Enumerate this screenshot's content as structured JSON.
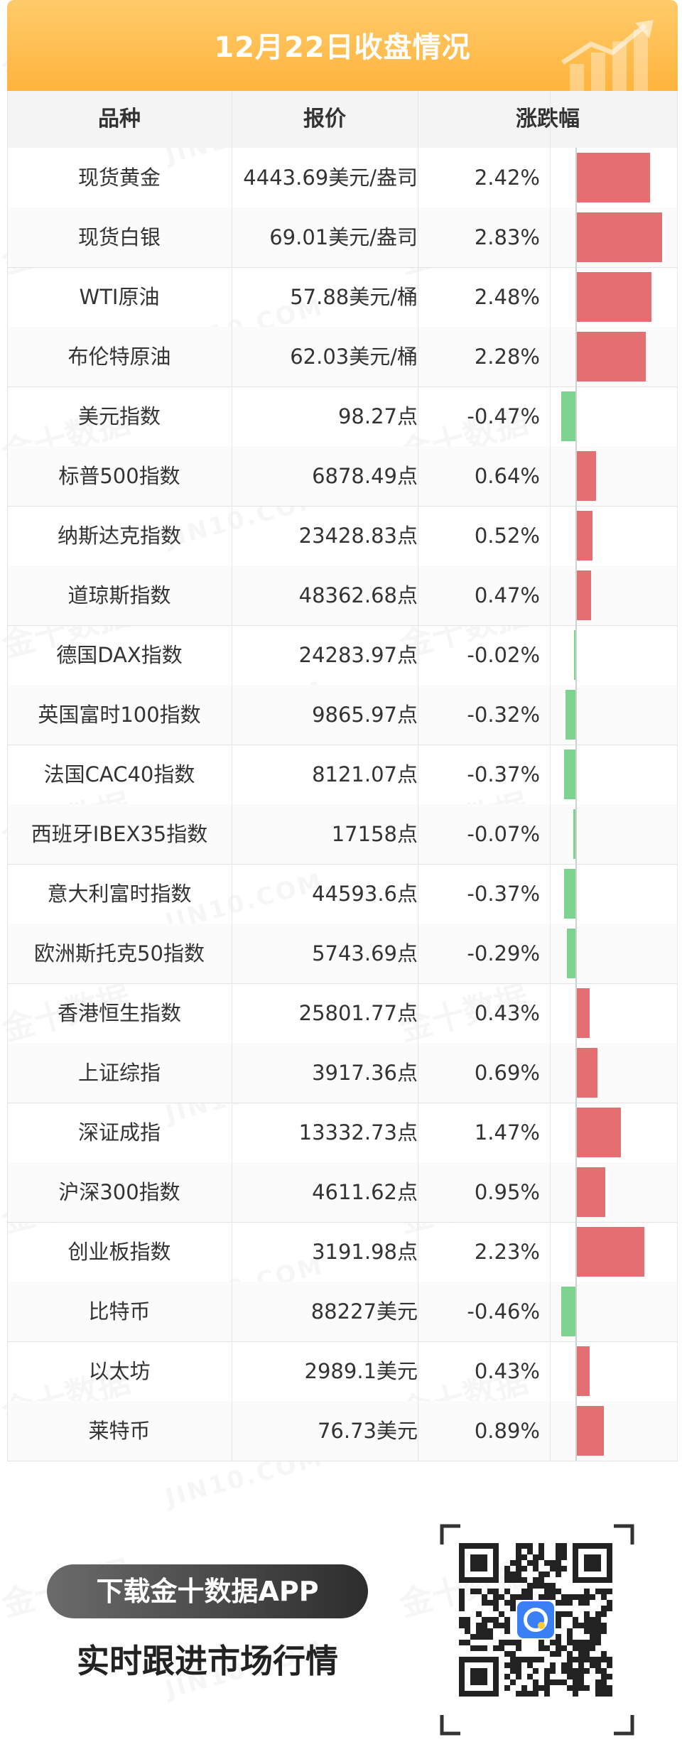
{
  "header": {
    "title": "12月22日收盘情况"
  },
  "table": {
    "columns": [
      "品种",
      "报价",
      "涨跌幅"
    ],
    "rows": [
      {
        "name": "现货黄金",
        "price": "4443.69美元/盎司",
        "change": "2.42%",
        "pct": 2.42
      },
      {
        "name": "现货白银",
        "price": "69.01美元/盎司",
        "change": "2.83%",
        "pct": 2.83
      },
      {
        "name": "WTI原油",
        "price": "57.88美元/桶",
        "change": "2.48%",
        "pct": 2.48
      },
      {
        "name": "布伦特原油",
        "price": "62.03美元/桶",
        "change": "2.28%",
        "pct": 2.28
      },
      {
        "name": "美元指数",
        "price": "98.27点",
        "change": "-0.47%",
        "pct": -0.47
      },
      {
        "name": "标普500指数",
        "price": "6878.49点",
        "change": "0.64%",
        "pct": 0.64
      },
      {
        "name": "纳斯达克指数",
        "price": "23428.83点",
        "change": "0.52%",
        "pct": 0.52
      },
      {
        "name": "道琼斯指数",
        "price": "48362.68点",
        "change": "0.47%",
        "pct": 0.47
      },
      {
        "name": "德国DAX指数",
        "price": "24283.97点",
        "change": "-0.02%",
        "pct": -0.02
      },
      {
        "name": "英国富时100指数",
        "price": "9865.97点",
        "change": "-0.32%",
        "pct": -0.32
      },
      {
        "name": "法国CAC40指数",
        "price": "8121.07点",
        "change": "-0.37%",
        "pct": -0.37
      },
      {
        "name": "西班牙IBEX35指数",
        "price": "17158点",
        "change": "-0.07%",
        "pct": -0.07
      },
      {
        "name": "意大利富时指数",
        "price": "44593.6点",
        "change": "-0.37%",
        "pct": -0.37
      },
      {
        "name": "欧洲斯托克50指数",
        "price": "5743.69点",
        "change": "-0.29%",
        "pct": -0.29
      },
      {
        "name": "香港恒生指数",
        "price": "25801.77点",
        "change": "0.43%",
        "pct": 0.43
      },
      {
        "name": "上证综指",
        "price": "3917.36点",
        "change": "0.69%",
        "pct": 0.69
      },
      {
        "name": "深证成指",
        "price": "13332.73点",
        "change": "1.47%",
        "pct": 1.47
      },
      {
        "name": "沪深300指数",
        "price": "4611.62点",
        "change": "0.95%",
        "pct": 0.95
      },
      {
        "name": "创业板指数",
        "price": "3191.98点",
        "change": "2.23%",
        "pct": 2.23
      },
      {
        "name": "比特币",
        "price": "88227美元",
        "change": "-0.46%",
        "pct": -0.46
      },
      {
        "name": "以太坊",
        "price": "2989.1美元",
        "change": "0.43%",
        "pct": 0.43
      },
      {
        "name": "莱特币",
        "price": "76.73美元",
        "change": "0.89%",
        "pct": 0.89
      }
    ]
  },
  "colors": {
    "up": "#e46f73",
    "down": "#7ed48f",
    "header": "#ffb43d"
  },
  "footer": {
    "download_label": "下载金十数据APP",
    "tagline": "实时跟进市场行情"
  },
  "watermark": {
    "text": "金十数据",
    "text2": "JIN10.COM"
  },
  "icons": {
    "header": "growth-chart-icon",
    "qr": "qr-code-icon",
    "app": "jin10-app-logo-icon"
  }
}
